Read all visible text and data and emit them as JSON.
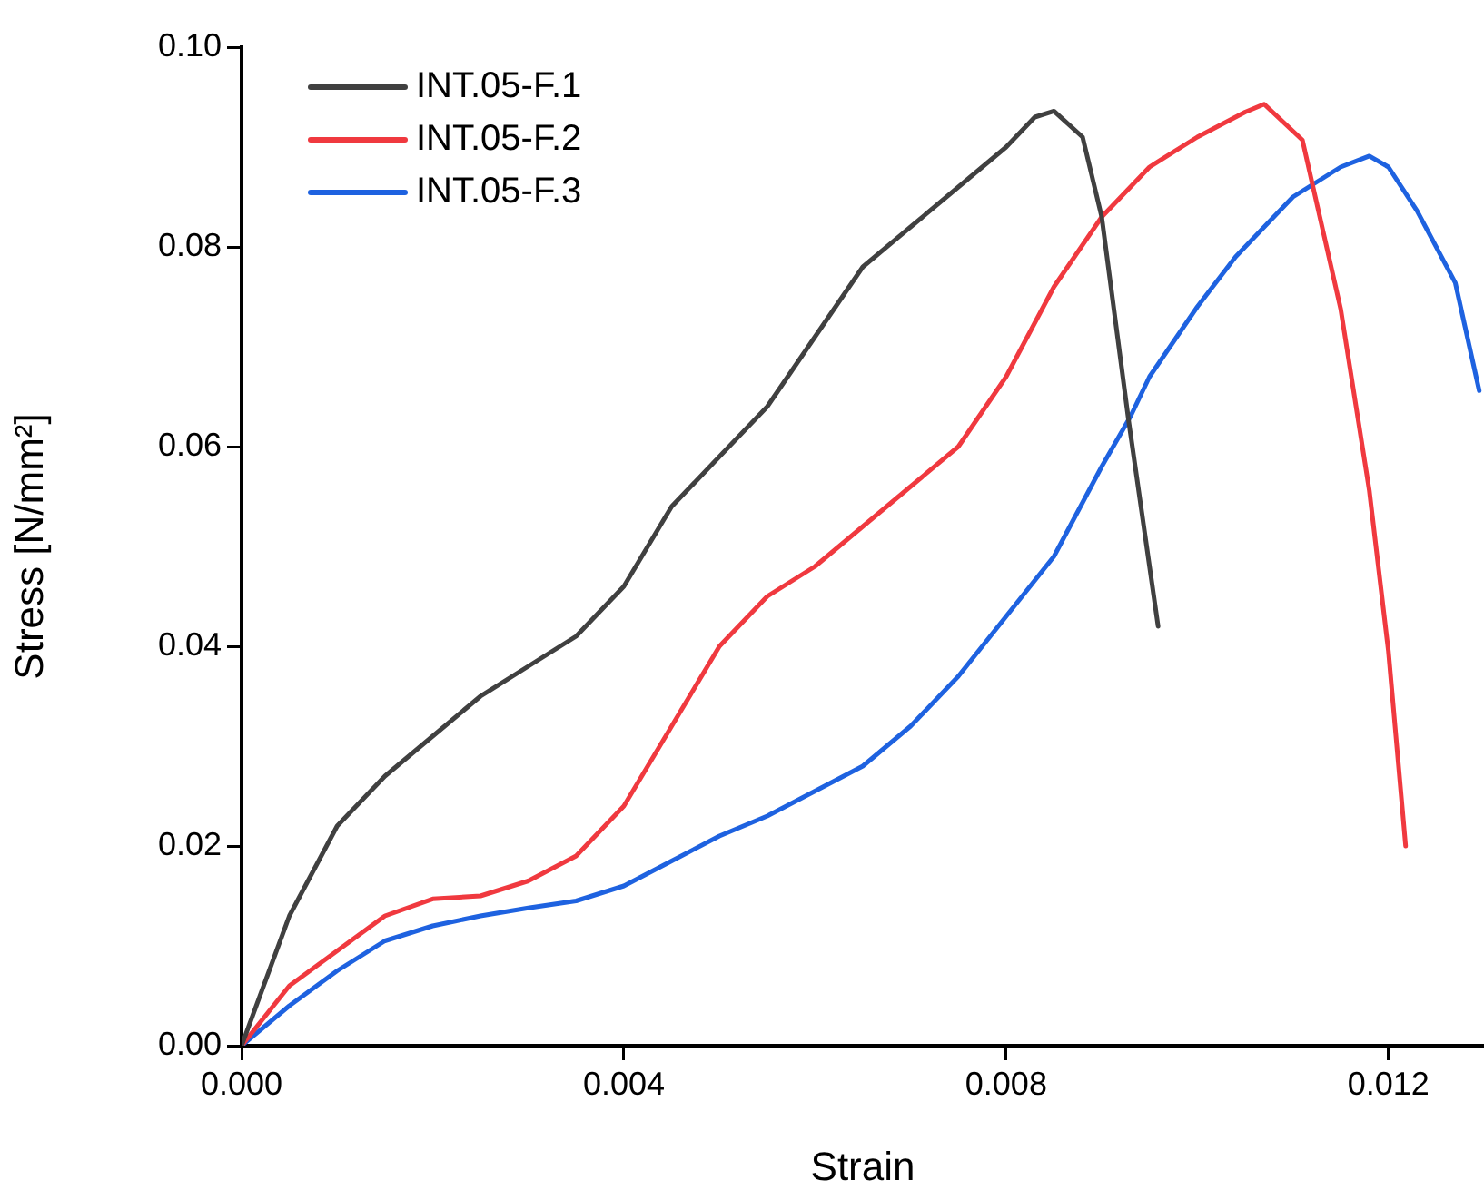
{
  "chart_data": {
    "type": "line",
    "xlabel": "Strain",
    "ylabel": "Stress [N/mm²]",
    "xlim": [
      0,
      0.013
    ],
    "ylim": [
      0,
      0.1
    ],
    "xticks": [
      {
        "value": 0,
        "label": "0.000"
      },
      {
        "value": 0.004,
        "label": "0.004"
      },
      {
        "value": 0.008,
        "label": "0.008"
      },
      {
        "value": 0.012,
        "label": "0.012"
      }
    ],
    "yticks": [
      {
        "value": 0,
        "label": "0.00"
      },
      {
        "value": 0.02,
        "label": "0.02"
      },
      {
        "value": 0.04,
        "label": "0.04"
      },
      {
        "value": 0.06,
        "label": "0.06"
      },
      {
        "value": 0.08,
        "label": "0.08"
      },
      {
        "value": 0.1,
        "label": "0.10"
      }
    ],
    "grid": false,
    "legend": "top left",
    "marker": "none",
    "line_style": "solid",
    "series": [
      {
        "name": "INT.05-F.1",
        "color": "#404040",
        "x": [
          0,
          0.0005,
          0.001,
          0.0015,
          0.002,
          0.0025,
          0.003,
          0.0035,
          0.004,
          0.0045,
          0.005,
          0.0055,
          0.006,
          0.0065,
          0.007,
          0.0075,
          0.008,
          0.0083,
          0.0085,
          0.0088,
          0.009,
          0.00928,
          0.00959
        ],
        "values": [
          0,
          0.013,
          0.022,
          0.027,
          0.031,
          0.035,
          0.038,
          0.041,
          0.046,
          0.054,
          0.059,
          0.064,
          0.071,
          0.078,
          0.082,
          0.086,
          0.09,
          0.093,
          0.0936,
          0.091,
          0.083,
          0.0627,
          0.042
        ]
      },
      {
        "name": "INT.05-F.2",
        "color": "#f0393f",
        "x": [
          0,
          0.0005,
          0.001,
          0.0015,
          0.002,
          0.0025,
          0.003,
          0.0035,
          0.004,
          0.0045,
          0.005,
          0.0055,
          0.006,
          0.0065,
          0.007,
          0.0075,
          0.008,
          0.0085,
          0.009,
          0.0095,
          0.01,
          0.0105,
          0.0107,
          0.0111,
          0.0115,
          0.0118,
          0.012,
          0.01218
        ],
        "values": [
          0,
          0.006,
          0.0095,
          0.013,
          0.0147,
          0.015,
          0.0165,
          0.019,
          0.024,
          0.032,
          0.04,
          0.045,
          0.048,
          0.052,
          0.056,
          0.06,
          0.067,
          0.076,
          0.083,
          0.088,
          0.091,
          0.0935,
          0.0943,
          0.0907,
          0.0738,
          0.0556,
          0.0395,
          0.02
        ]
      },
      {
        "name": "INT.05-F.3",
        "color": "#1e62e0",
        "x": [
          0,
          0.0005,
          0.001,
          0.0015,
          0.002,
          0.0025,
          0.003,
          0.0035,
          0.004,
          0.0045,
          0.005,
          0.0055,
          0.006,
          0.0065,
          0.007,
          0.0075,
          0.008,
          0.0085,
          0.009,
          0.0093,
          0.0095,
          0.01,
          0.0104,
          0.011,
          0.0115,
          0.0118,
          0.012,
          0.0123,
          0.0127,
          0.01295
        ],
        "values": [
          0,
          0.004,
          0.0075,
          0.0105,
          0.012,
          0.013,
          0.0138,
          0.0145,
          0.016,
          0.0185,
          0.021,
          0.023,
          0.0255,
          0.028,
          0.032,
          0.037,
          0.043,
          0.049,
          0.058,
          0.063,
          0.067,
          0.074,
          0.079,
          0.085,
          0.088,
          0.0891,
          0.088,
          0.0836,
          0.0764,
          0.0656
        ]
      }
    ]
  }
}
